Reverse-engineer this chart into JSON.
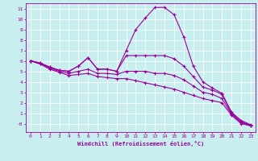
{
  "title": "",
  "xlabel": "Windchill (Refroidissement éolien,°C)",
  "bg_color": "#c8eef0",
  "line_color": "#990099",
  "grid_color": "#ffffff",
  "x_values": [
    0,
    1,
    2,
    3,
    4,
    5,
    6,
    7,
    8,
    9,
    10,
    11,
    12,
    13,
    14,
    15,
    16,
    17,
    18,
    19,
    20,
    21,
    22,
    23
  ],
  "lines": [
    [
      6.0,
      5.8,
      5.4,
      5.1,
      5.0,
      5.5,
      6.3,
      5.2,
      5.2,
      5.0,
      7.0,
      9.0,
      10.1,
      11.1,
      11.1,
      10.4,
      8.3,
      5.5,
      4.0,
      3.4,
      2.9,
      1.1,
      0.3,
      -0.1
    ],
    [
      6.0,
      5.8,
      5.4,
      5.1,
      5.0,
      5.5,
      6.3,
      5.2,
      5.2,
      5.0,
      6.5,
      6.5,
      6.5,
      6.5,
      6.5,
      6.2,
      5.5,
      4.5,
      3.5,
      3.2,
      2.8,
      1.0,
      0.2,
      -0.15
    ],
    [
      6.0,
      5.7,
      5.3,
      5.0,
      4.8,
      5.0,
      5.2,
      4.8,
      4.8,
      4.7,
      5.0,
      5.0,
      5.0,
      4.8,
      4.8,
      4.6,
      4.2,
      3.6,
      3.0,
      2.8,
      2.4,
      0.9,
      0.1,
      -0.2
    ],
    [
      6.0,
      5.7,
      5.2,
      4.9,
      4.6,
      4.7,
      4.8,
      4.5,
      4.4,
      4.3,
      4.3,
      4.1,
      3.9,
      3.7,
      3.5,
      3.3,
      3.0,
      2.7,
      2.4,
      2.2,
      2.0,
      0.8,
      0.0,
      -0.2
    ]
  ],
  "ylim": [
    -0.8,
    11.5
  ],
  "xlim": [
    -0.5,
    23.5
  ],
  "yticks": [
    0,
    1,
    2,
    3,
    4,
    5,
    6,
    7,
    8,
    9,
    10,
    11
  ],
  "ytick_labels": [
    "-0",
    "1",
    "2",
    "3",
    "4",
    "5",
    "6",
    "7",
    "8",
    "9",
    "10",
    "11"
  ],
  "xticks": [
    0,
    1,
    2,
    3,
    4,
    5,
    6,
    7,
    8,
    9,
    10,
    11,
    12,
    13,
    14,
    15,
    16,
    17,
    18,
    19,
    20,
    21,
    22,
    23
  ],
  "xtick_labels": [
    "0",
    "1",
    "2",
    "3",
    "4",
    "5",
    "6",
    "7",
    "8",
    "9",
    "10",
    "11",
    "12",
    "13",
    "14",
    "15",
    "16",
    "17",
    "18",
    "19",
    "20",
    "21",
    "22",
    "23"
  ],
  "xlabel_fontsize": 5.0,
  "tick_fontsize": 4.5,
  "marker_size": 3.0,
  "line_width": 0.8
}
